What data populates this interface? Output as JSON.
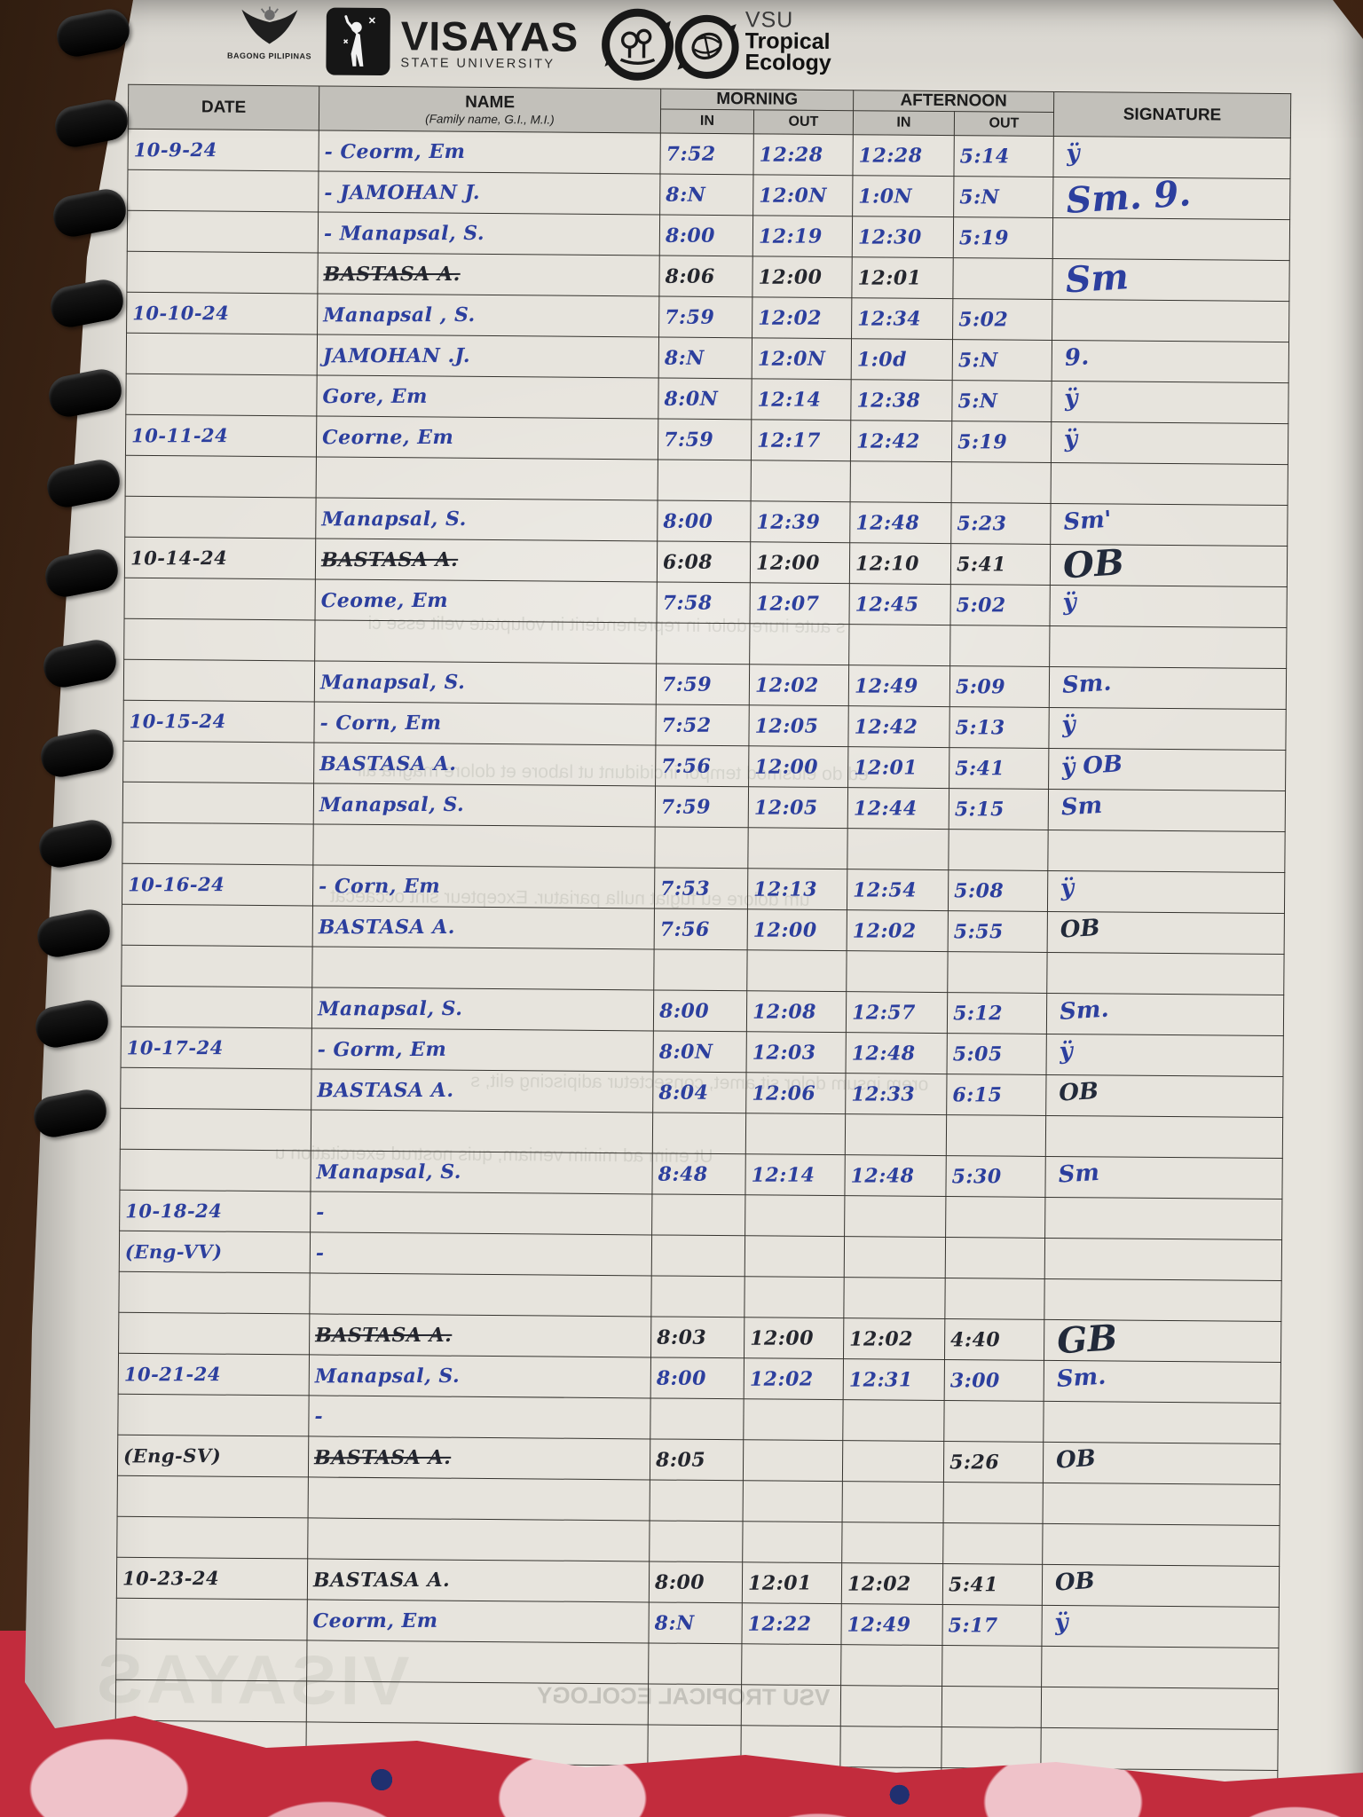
{
  "header": {
    "bagong_pilipinas": "BAGONG PILIPINAS",
    "university": "VISAYAS",
    "university_sub": "STATE UNIVERSITY",
    "org_vsu": "VSU",
    "org_line1": "Tropical",
    "org_line2": "Ecology"
  },
  "table": {
    "columns": {
      "date": "DATE",
      "name": "NAME",
      "name_sub": "(Family name, G.I., M.I.)",
      "morning": "MORNING",
      "afternoon": "AFTERNOON",
      "in": "IN",
      "out": "OUT",
      "signature": "SIGNATURE"
    },
    "rows": [
      {
        "date": "10-9-24",
        "name": "- Ceorm, Em",
        "mi": "7:52",
        "mo": "12:28",
        "ai": "12:28",
        "ao": "5:14",
        "sig": "ÿ"
      },
      {
        "date": "",
        "name": "- JAMOHAN J.",
        "mi": "8:N",
        "mo": "12:0N",
        "ai": "1:0N",
        "ao": "5:N",
        "sig": "Sm. 9.",
        "sigBig": true
      },
      {
        "date": "",
        "name": "- Manapsal, S.",
        "mi": "8:00",
        "mo": "12:19",
        "ai": "12:30",
        "ao": "5:19",
        "sig": ""
      },
      {
        "date": "",
        "name": "BASTASA A.",
        "struck": true,
        "ink": "black",
        "mi": "8:06",
        "mo": "12:00",
        "ai": "12:01",
        "ao": "",
        "sig": "Sm",
        "sigBig": true
      },
      {
        "date": "10-10-24",
        "name": "Manapsal , S.",
        "mi": "7:59",
        "mo": "12:02",
        "ai": "12:34",
        "ao": "5:02",
        "sig": ""
      },
      {
        "date": "",
        "name": "JAMOHAN .J.",
        "mi": "8:N",
        "mo": "12:0N",
        "ai": "1:0d",
        "ao": "5:N",
        "sig": "9."
      },
      {
        "date": "",
        "name": "Gore, Em",
        "mi": "8:0N",
        "mo": "12:14",
        "ai": "12:38",
        "ao": "5:N",
        "sig": "ÿ"
      },
      {
        "date": "10-11-24",
        "name": "Ceorne, Em",
        "mi": "7:59",
        "mo": "12:17",
        "ai": "12:42",
        "ao": "5:19",
        "sig": "ÿ"
      },
      {
        "date": "",
        "name": "",
        "mi": "",
        "mo": "",
        "ai": "",
        "ao": "",
        "sig": ""
      },
      {
        "date": "",
        "name": "Manapsal, S.",
        "mi": "8:00",
        "mo": "12:39",
        "ai": "12:48",
        "ao": "5:23",
        "sig": "Sm'"
      },
      {
        "date": "10-14-24",
        "name": "BASTASA A.",
        "struck": true,
        "ink": "black",
        "mi": "6:08",
        "mo": "12:00",
        "ai": "12:10",
        "ao": "5:41",
        "sig": "OB",
        "sigBig": true,
        "sigDark": true
      },
      {
        "date": "",
        "name": "Ceome, Em",
        "mi": "7:58",
        "mo": "12:07",
        "ai": "12:45",
        "ao": "5:02",
        "sig": "ÿ"
      },
      {
        "date": "",
        "name": "",
        "mi": "",
        "mo": "",
        "ai": "",
        "ao": "",
        "sig": ""
      },
      {
        "date": "",
        "name": "Manapsal, S.",
        "mi": "7:59",
        "mo": "12:02",
        "ai": "12:49",
        "ao": "5:09",
        "sig": "Sm."
      },
      {
        "date": "10-15-24",
        "name": "- Corn, Em",
        "mi": "7:52",
        "mo": "12:05",
        "ai": "12:42",
        "ao": "5:13",
        "sig": "ÿ"
      },
      {
        "date": "",
        "name": "BASTASA A.",
        "mi": "7:56",
        "mo": "12:00",
        "ai": "12:01",
        "ao": "5:41",
        "sig": "ÿ  OB"
      },
      {
        "date": "",
        "name": "Manapsal, S.",
        "mi": "7:59",
        "mo": "12:05",
        "ai": "12:44",
        "ao": "5:15",
        "sig": "Sm"
      },
      {
        "date": "",
        "name": "",
        "mi": "",
        "mo": "",
        "ai": "",
        "ao": "",
        "sig": ""
      },
      {
        "date": "10-16-24",
        "name": "- Corn, Em",
        "mi": "7:53",
        "mo": "12:13",
        "ai": "12:54",
        "ao": "5:08",
        "sig": "ÿ"
      },
      {
        "date": "",
        "name": "BASTASA A.",
        "mi": "7:56",
        "mo": "12:00",
        "ai": "12:02",
        "ao": "5:55",
        "sig": "OB",
        "sigDark": true
      },
      {
        "date": "",
        "name": "",
        "mi": "",
        "mo": "",
        "ai": "",
        "ao": "",
        "sig": ""
      },
      {
        "date": "",
        "name": "Manapsal, S.",
        "mi": "8:00",
        "mo": "12:08",
        "ai": "12:57",
        "ao": "5:12",
        "sig": "Sm."
      },
      {
        "date": "10-17-24",
        "name": "- Gorm, Em",
        "mi": "8:0N",
        "mo": "12:03",
        "ai": "12:48",
        "ao": "5:05",
        "sig": "ÿ"
      },
      {
        "date": "",
        "name": "BASTASA A.",
        "mi": "8:04",
        "mo": "12:06",
        "ai": "12:33",
        "ao": "6:15",
        "sig": "OB",
        "sigDark": true
      },
      {
        "date": "",
        "name": "",
        "mi": "",
        "mo": "",
        "ai": "",
        "ao": "",
        "sig": ""
      },
      {
        "date": "",
        "name": "Manapsal, S.",
        "mi": "8:48",
        "mo": "12:14",
        "ai": "12:48",
        "ao": "5:30",
        "sig": "Sm"
      },
      {
        "date": "10-18-24",
        "name": "-",
        "mi": "",
        "mo": "",
        "ai": "",
        "ao": "",
        "sig": ""
      },
      {
        "date": "(Eng-VV)",
        "name": "-",
        "mi": "",
        "mo": "",
        "ai": "",
        "ao": "",
        "sig": ""
      },
      {
        "date": "",
        "name": "",
        "mi": "",
        "mo": "",
        "ai": "",
        "ao": "",
        "sig": ""
      },
      {
        "date": "",
        "name": "BASTASA A.",
        "struck": true,
        "ink": "black",
        "mi": "8:03",
        "mo": "12:00",
        "ai": "12:02",
        "ao": "4:40",
        "sig": "GB",
        "sigBig": true,
        "sigDark": true
      },
      {
        "date": "10-21-24",
        "name": "Manapsal, S.",
        "mi": "8:00",
        "mo": "12:02",
        "ai": "12:31",
        "ao": "3:00",
        "sig": "Sm."
      },
      {
        "date": "",
        "name": "-",
        "mi": "",
        "mo": "",
        "ai": "",
        "ao": "",
        "sig": ""
      },
      {
        "date": "(Eng-SV)",
        "name": "BASTASA A.",
        "struck": true,
        "ink": "black",
        "mi": "8:05",
        "mo": "",
        "ai": "",
        "ao": "5:26",
        "sig": "OB",
        "sigDark": true
      },
      {
        "date": "",
        "name": "",
        "mi": "",
        "mo": "",
        "ai": "",
        "ao": "",
        "sig": ""
      },
      {
        "date": "",
        "name": "",
        "mi": "",
        "mo": "",
        "ai": "",
        "ao": "",
        "sig": ""
      },
      {
        "date": "10-23-24",
        "name": "BASTASA A.",
        "ink": "black",
        "mi": "8:00",
        "mo": "12:01",
        "ai": "12:02",
        "ao": "5:41",
        "sig": "OB",
        "sigDark": true
      },
      {
        "date": "",
        "name": "Ceorm, Em",
        "mi": "8:N",
        "mo": "12:22",
        "ai": "12:49",
        "ao": "5:17",
        "sig": "ÿ"
      },
      {
        "date": "",
        "name": "",
        "mi": "",
        "mo": "",
        "ai": "",
        "ao": "",
        "sig": ""
      },
      {
        "date": "",
        "name": "",
        "mi": "",
        "mo": "",
        "ai": "",
        "ao": "",
        "sig": ""
      },
      {
        "date": "",
        "name": "",
        "mi": "",
        "mo": "",
        "ai": "",
        "ao": "",
        "sig": ""
      },
      {
        "date": "",
        "name": "",
        "mi": "",
        "mo": "",
        "ai": "",
        "ao": "",
        "sig": ""
      }
    ]
  },
  "bleed": {
    "f1": "s aute irure dolor in reprehenderit in voluptate velit esse ci",
    "f2": "um dolore eu fugiat nulla pariatur. Excepteur sint occaecat",
    "f3": "orem ipsum dolor sit amet, consectetur adipiscing elit, s",
    "f4": "Ut enim ad minim veniam, quis nostrud exercitation u",
    "f5": "nostrud exercitation ullamco laboris nisi ut aliquip ex ea commodo consequat. Duis aute",
    "f6": "ed do eiusmod tempor incididunt ut labore et dolore magna ali",
    "watermark": "VISAYAS",
    "w2": "VSU TROPICAL ECOLOGY"
  }
}
